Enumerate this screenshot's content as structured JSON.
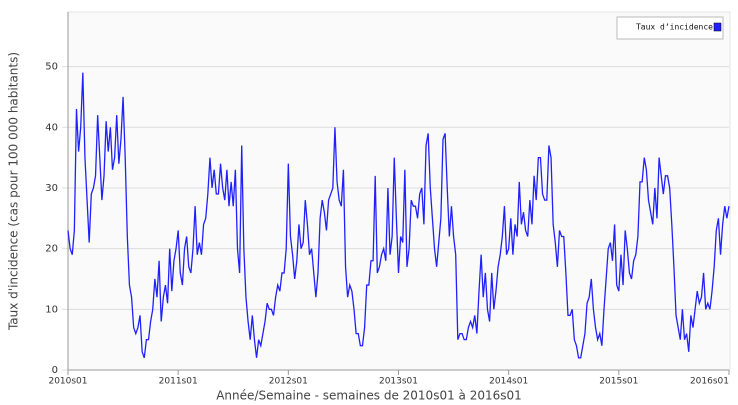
{
  "chart_data": {
    "type": "line",
    "ylabel": "Taux d'incidence (cas pour 100 000 habitants)",
    "xlabel": "Année/Semaine - semaines de 2010s01 à 2016s01",
    "ylim": [
      0,
      59
    ],
    "yticks": [
      0,
      10,
      20,
      30,
      40,
      50
    ],
    "grid": true,
    "legend": "upper right",
    "categories": [
      "2010s01",
      null,
      null,
      null,
      null,
      null,
      null,
      null,
      null,
      null,
      null,
      null,
      null,
      null,
      null,
      null,
      null,
      null,
      null,
      null,
      null,
      null,
      null,
      null,
      null,
      null,
      null,
      null,
      null,
      null,
      null,
      null,
      null,
      null,
      null,
      null,
      null,
      null,
      null,
      null,
      null,
      null,
      null,
      null,
      null,
      null,
      null,
      null,
      null,
      null,
      null,
      null,
      "2011s01",
      null,
      null,
      null,
      null,
      null,
      null,
      null,
      null,
      null,
      null,
      null,
      null,
      null,
      null,
      null,
      null,
      null,
      null,
      null,
      null,
      null,
      null,
      null,
      null,
      null,
      null,
      null,
      null,
      null,
      null,
      null,
      null,
      null,
      null,
      null,
      null,
      null,
      null,
      null,
      null,
      null,
      null,
      null,
      null,
      null,
      null,
      null,
      null,
      null,
      null,
      null,
      "2012s01",
      null,
      null,
      null,
      null,
      null,
      null,
      null,
      null,
      null,
      null,
      null,
      null,
      null,
      null,
      null,
      null,
      null,
      null,
      null,
      null,
      null,
      null,
      null,
      null,
      null,
      null,
      null,
      null,
      null,
      null,
      null,
      null,
      null,
      null,
      null,
      null,
      null,
      null,
      null,
      null,
      null,
      null,
      null,
      null,
      null,
      null,
      null,
      null,
      null,
      null,
      null,
      "2013s01",
      null,
      null,
      null,
      null,
      null,
      null,
      null,
      null,
      null,
      null,
      null,
      null,
      null,
      null,
      null,
      null,
      null,
      null,
      null,
      null,
      null,
      null,
      null,
      null,
      null,
      null,
      null,
      null,
      null,
      null,
      null,
      null,
      null,
      null,
      null,
      null,
      null,
      null,
      null,
      null,
      null,
      null,
      null,
      null,
      null,
      null,
      null,
      null,
      null,
      null,
      null,
      "2014s01",
      null,
      null,
      null,
      null,
      null,
      null,
      null,
      null,
      null,
      null,
      null,
      null,
      null,
      null,
      null,
      null,
      null,
      null,
      null,
      null,
      null,
      null,
      null,
      null,
      null,
      null,
      null,
      null,
      null,
      null,
      null,
      null,
      null,
      null,
      null,
      null,
      null,
      null,
      null,
      null,
      null,
      null,
      null,
      null,
      null,
      null,
      null,
      null,
      null,
      null,
      null,
      "2015s01",
      null,
      null,
      null,
      null,
      null,
      null,
      null,
      null,
      null,
      null,
      null,
      null,
      null,
      null,
      null,
      null,
      null,
      null,
      null,
      null,
      null,
      null,
      null,
      null,
      null,
      null,
      null,
      null,
      null,
      null,
      null,
      null,
      null,
      null,
      null,
      null,
      null,
      null,
      null,
      null,
      null,
      null,
      null,
      null,
      null,
      null,
      null,
      null,
      null,
      null,
      null,
      "2016s01"
    ],
    "series": [
      {
        "name": "Taux d’incidence",
        "color": "#2020ff",
        "values": [
          23,
          20,
          19,
          23,
          43,
          36,
          40,
          49,
          35,
          28,
          21,
          29,
          30,
          32,
          42,
          35,
          28,
          32,
          41,
          36,
          40,
          33,
          35,
          42,
          34,
          38,
          45,
          35,
          22,
          14,
          12,
          7,
          6,
          7,
          9,
          3,
          2,
          5,
          5,
          8,
          10,
          15,
          12,
          18,
          8,
          12,
          14,
          11,
          20,
          13,
          18,
          20,
          23,
          16,
          14,
          20,
          22,
          17,
          16,
          20,
          27,
          19,
          21,
          19,
          24,
          25,
          29,
          35,
          30,
          33,
          29,
          29,
          34,
          30,
          28,
          33,
          27,
          31,
          27,
          33,
          20,
          16,
          37,
          20,
          12,
          8,
          5,
          9,
          5,
          2,
          5,
          4,
          6,
          8,
          11,
          10,
          10,
          9,
          12,
          14,
          13,
          16,
          16,
          20,
          34,
          22,
          19,
          15,
          18,
          24,
          20,
          21,
          28,
          24,
          19,
          20,
          16,
          12,
          16,
          25,
          28,
          26,
          23,
          28,
          29,
          30,
          40,
          31,
          28,
          27,
          33,
          17,
          12,
          14,
          13,
          10,
          6,
          6,
          4,
          4,
          7,
          14,
          14,
          18,
          18,
          32,
          16,
          17,
          19,
          20,
          18,
          30,
          19,
          22,
          35,
          25,
          16,
          22,
          21,
          33,
          17,
          20,
          28,
          27,
          27,
          25,
          29,
          30,
          24,
          37,
          39,
          30,
          25,
          20,
          17,
          21,
          25,
          38,
          39,
          30,
          22,
          27,
          22,
          19,
          5,
          6,
          6,
          5,
          5,
          7,
          8,
          7,
          9,
          6,
          13,
          19,
          12,
          16,
          10,
          8,
          16,
          10,
          13,
          17,
          19,
          22,
          27,
          19,
          20,
          25,
          19,
          24,
          22,
          31,
          24,
          26,
          23,
          22,
          28,
          24,
          32,
          28,
          35,
          35,
          29,
          28,
          28,
          37,
          35,
          24,
          21,
          17,
          23,
          22,
          22,
          16,
          9,
          9,
          10,
          5,
          4,
          2,
          2,
          4,
          6,
          11,
          12,
          15,
          10,
          7,
          5,
          6,
          4,
          10,
          15,
          20,
          21,
          18,
          24,
          14,
          13,
          19,
          14,
          23,
          20,
          16,
          15,
          18,
          19,
          22,
          31,
          31,
          35,
          33,
          28,
          26,
          24,
          30,
          25,
          35,
          32,
          29,
          32,
          32,
          30,
          24,
          17,
          9,
          7,
          5,
          10,
          5,
          6,
          3,
          9,
          7,
          10,
          13,
          11,
          12,
          16,
          10,
          11,
          10,
          13,
          17,
          23,
          25,
          19,
          24,
          27,
          25,
          27
        ]
      }
    ]
  }
}
